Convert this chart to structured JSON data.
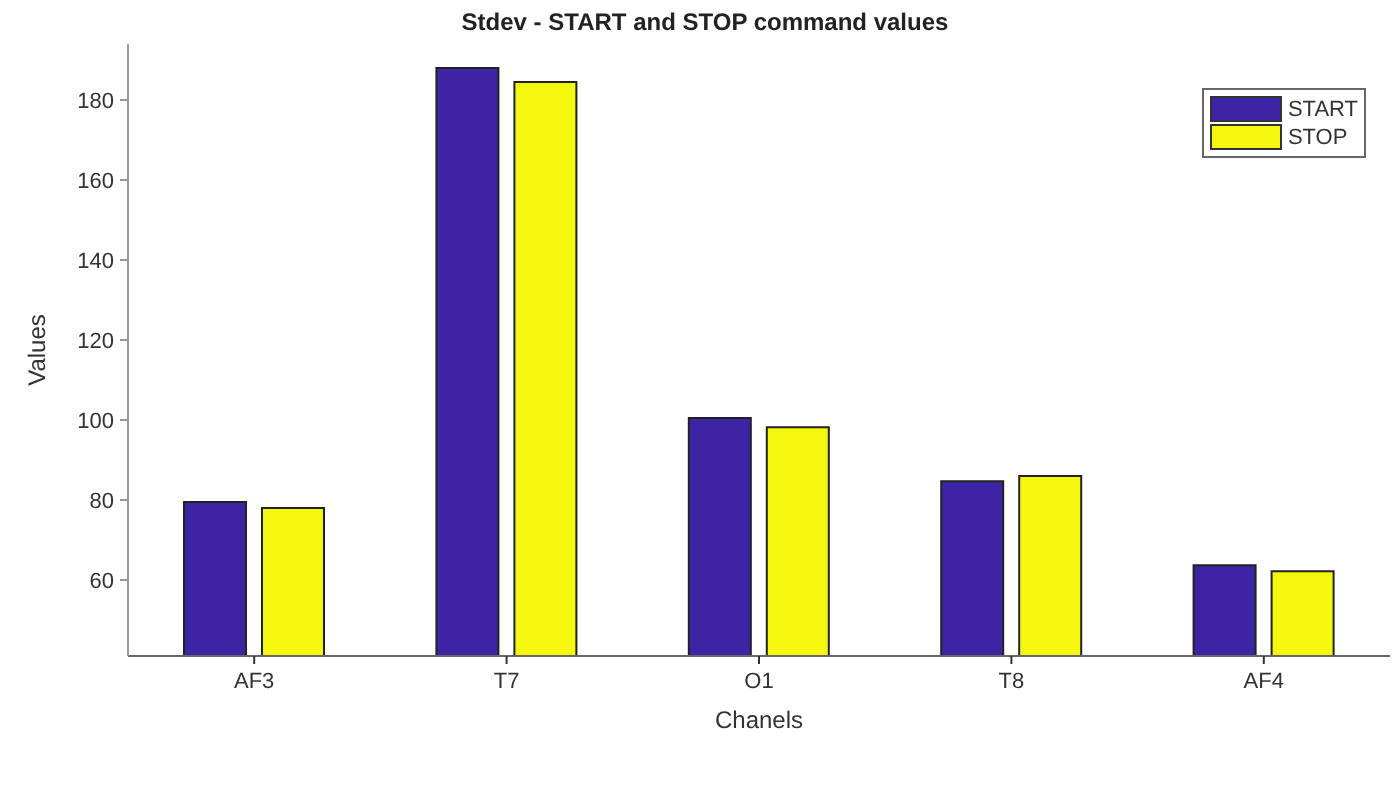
{
  "chart_data": {
    "type": "bar",
    "title": "Stdev - START and STOP command values",
    "xlabel": "Chanels",
    "ylabel": "Values",
    "categories": [
      "AF3",
      "T7",
      "O1",
      "T8",
      "AF4"
    ],
    "series": [
      {
        "name": "START",
        "color": "#3c24a4",
        "values": [
          79.5,
          188,
          100.5,
          84.7,
          63.7
        ]
      },
      {
        "name": "STOP",
        "color": "#f6f70f",
        "values": [
          78,
          184.5,
          98.2,
          86,
          62.2
        ]
      }
    ],
    "ylim": [
      41,
      194
    ],
    "yticks": [
      60,
      80,
      100,
      120,
      140,
      160,
      180
    ],
    "legend": "top right"
  }
}
